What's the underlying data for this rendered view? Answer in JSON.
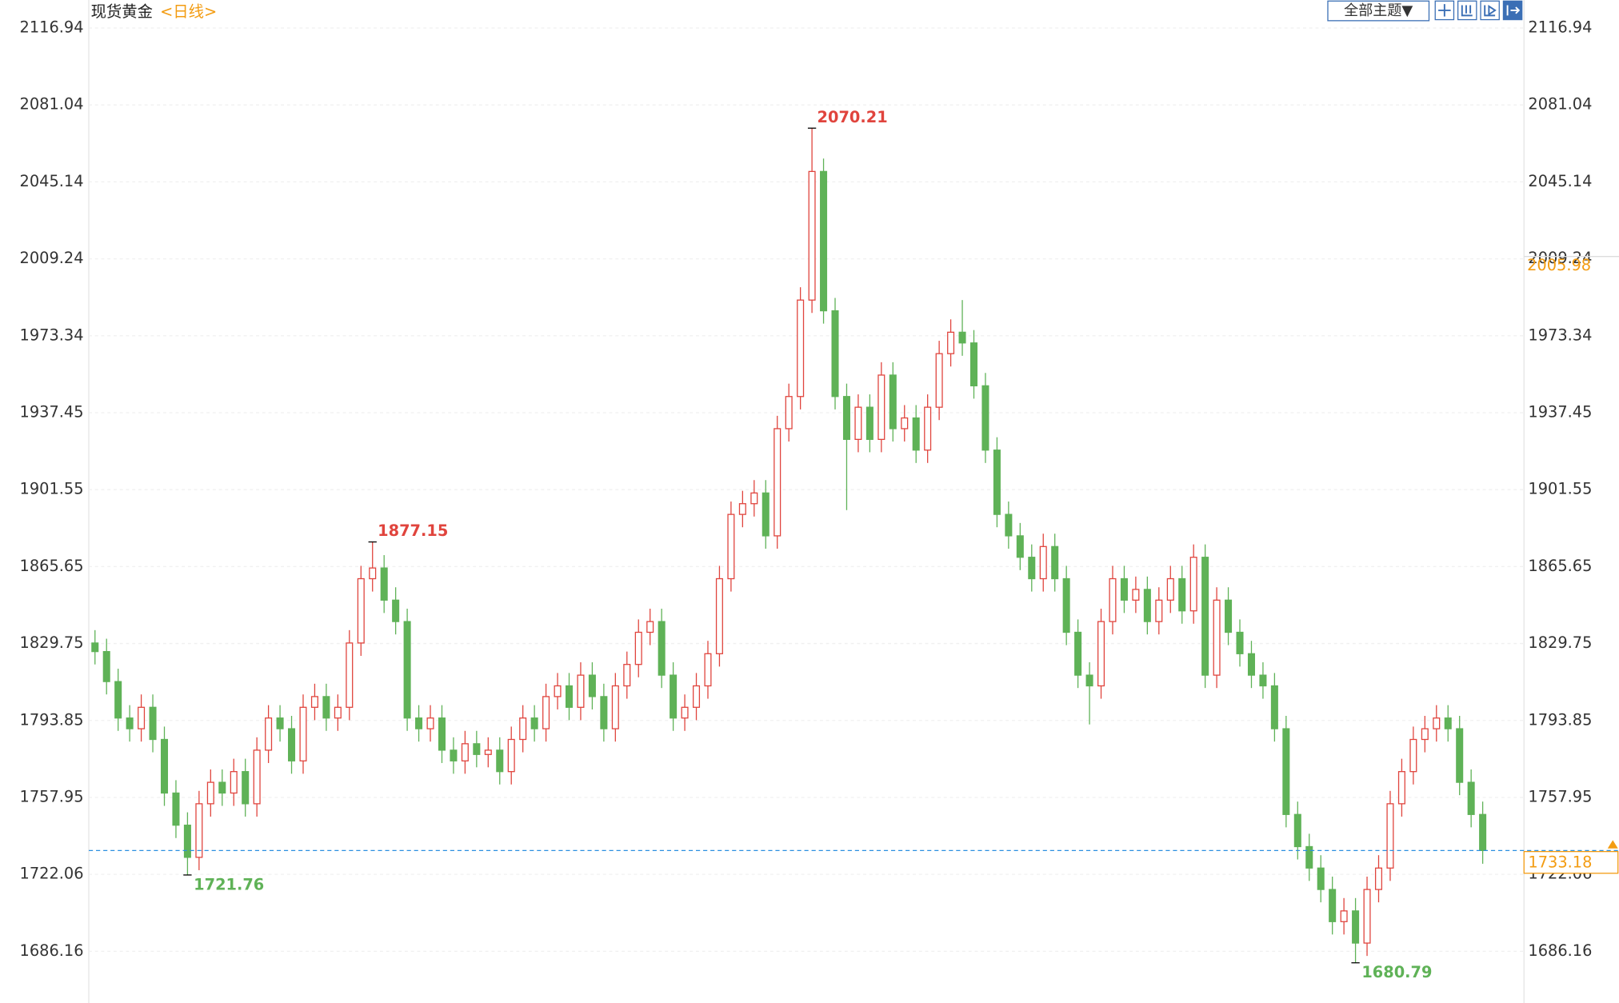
{
  "chart_data": {
    "type": "candlestick",
    "title": "现货黄金",
    "period": "<日线>",
    "toolbar": {
      "theme_button": "全部主题▼"
    },
    "up_color": "#e0443d",
    "down_color": "#5fb257",
    "last_price_color": "#2b8fe0",
    "reference_color": "#f39c12",
    "ylim": [
      1663,
      2130
    ],
    "yticks": [
      1686.16,
      1722.06,
      1757.95,
      1793.85,
      1829.75,
      1865.65,
      1901.55,
      1937.45,
      1973.34,
      2009.24,
      2045.14,
      2081.04,
      2116.94
    ],
    "grid": true,
    "reference_price": 2005.98,
    "open": [
      1830,
      1826,
      1812,
      1795,
      1790,
      1800,
      1785,
      1760,
      1745,
      1730,
      1755,
      1765,
      1760,
      1770,
      1755,
      1780,
      1795,
      1790,
      1775,
      1800,
      1805,
      1795,
      1800,
      1830,
      1860,
      1865,
      1850,
      1840,
      1795,
      1790,
      1795,
      1780,
      1775,
      1783,
      1778,
      1780,
      1770,
      1785,
      1795,
      1790,
      1805,
      1810,
      1800,
      1815,
      1805,
      1790,
      1810,
      1820,
      1835,
      1840,
      1815,
      1795,
      1800,
      1810,
      1825,
      1860,
      1890,
      1895,
      1900,
      1880,
      1930,
      1945,
      1990,
      2050,
      1985,
      1945,
      1925,
      1940,
      1925,
      1955,
      1930,
      1935,
      1920,
      1940,
      1965,
      1975,
      1970,
      1950,
      1920,
      1890,
      1880,
      1870,
      1860,
      1875,
      1860,
      1835,
      1815,
      1810,
      1840,
      1860,
      1850,
      1855,
      1840,
      1850,
      1860,
      1845,
      1870,
      1815,
      1850,
      1835,
      1825,
      1815,
      1810,
      1790,
      1750,
      1735,
      1725,
      1715,
      1700,
      1705,
      1690,
      1715,
      1725,
      1755,
      1770,
      1785,
      1790,
      1795,
      1790,
      1765,
      1750
    ],
    "high": [
      1836,
      1832,
      1818,
      1801,
      1806,
      1806,
      1791,
      1766,
      1751,
      1761,
      1771,
      1771,
      1776,
      1776,
      1786,
      1801,
      1801,
      1796,
      1806,
      1811,
      1811,
      1806,
      1836,
      1866,
      1877.15,
      1871,
      1856,
      1846,
      1801,
      1801,
      1801,
      1786,
      1789,
      1789,
      1786,
      1786,
      1791,
      1801,
      1801,
      1811,
      1816,
      1816,
      1821,
      1821,
      1811,
      1816,
      1826,
      1841,
      1846,
      1846,
      1821,
      1806,
      1816,
      1831,
      1866,
      1896,
      1901,
      1906,
      1906,
      1936,
      1951,
      1996,
      2070.21,
      2056,
      1991,
      1951,
      1946,
      1946,
      1961,
      1961,
      1941,
      1941,
      1946,
      1971,
      1981,
      1990,
      1976,
      1956,
      1926,
      1896,
      1886,
      1876,
      1881,
      1881,
      1866,
      1841,
      1821,
      1846,
      1866,
      1866,
      1861,
      1861,
      1856,
      1866,
      1866,
      1876,
      1876,
      1856,
      1856,
      1841,
      1831,
      1821,
      1816,
      1796,
      1756,
      1741,
      1731,
      1721,
      1711,
      1711,
      1721,
      1731,
      1761,
      1776,
      1791,
      1796,
      1801,
      1801,
      1796,
      1771,
      1756
    ],
    "low": [
      1820,
      1806,
      1789,
      1784,
      1784,
      1779,
      1754,
      1739,
      1721.76,
      1724,
      1749,
      1754,
      1754,
      1749,
      1749,
      1774,
      1784,
      1769,
      1769,
      1794,
      1789,
      1789,
      1794,
      1824,
      1854,
      1844,
      1834,
      1789,
      1784,
      1784,
      1774,
      1769,
      1769,
      1772,
      1772,
      1764,
      1764,
      1779,
      1784,
      1784,
      1799,
      1794,
      1794,
      1799,
      1784,
      1784,
      1804,
      1814,
      1829,
      1809,
      1789,
      1789,
      1794,
      1804,
      1819,
      1854,
      1884,
      1889,
      1874,
      1874,
      1924,
      1939,
      1984,
      1979,
      1939,
      1892,
      1919,
      1919,
      1919,
      1924,
      1924,
      1914,
      1914,
      1934,
      1959,
      1964,
      1944,
      1914,
      1884,
      1874,
      1864,
      1854,
      1854,
      1854,
      1829,
      1809,
      1792,
      1804,
      1834,
      1844,
      1844,
      1834,
      1834,
      1844,
      1839,
      1839,
      1809,
      1809,
      1829,
      1819,
      1809,
      1804,
      1784,
      1744,
      1729,
      1719,
      1709,
      1694,
      1694,
      1680.79,
      1684,
      1709,
      1719,
      1749,
      1764,
      1779,
      1784,
      1784,
      1759,
      1744,
      1727
    ],
    "close": [
      1826,
      1812,
      1795,
      1790,
      1800,
      1785,
      1760,
      1745,
      1730,
      1755,
      1765,
      1760,
      1770,
      1755,
      1780,
      1795,
      1790,
      1775,
      1800,
      1805,
      1795,
      1800,
      1830,
      1860,
      1865,
      1850,
      1840,
      1795,
      1790,
      1795,
      1780,
      1775,
      1783,
      1778,
      1780,
      1770,
      1785,
      1795,
      1790,
      1805,
      1810,
      1800,
      1815,
      1805,
      1790,
      1810,
      1820,
      1835,
      1840,
      1815,
      1795,
      1800,
      1810,
      1825,
      1860,
      1890,
      1895,
      1900,
      1880,
      1930,
      1945,
      1990,
      2050,
      1985,
      1945,
      1925,
      1940,
      1925,
      1955,
      1930,
      1935,
      1920,
      1940,
      1965,
      1975,
      1970,
      1950,
      1920,
      1890,
      1880,
      1870,
      1860,
      1875,
      1860,
      1835,
      1815,
      1810,
      1840,
      1860,
      1850,
      1855,
      1840,
      1850,
      1860,
      1845,
      1870,
      1815,
      1850,
      1835,
      1825,
      1815,
      1810,
      1790,
      1750,
      1735,
      1725,
      1715,
      1700,
      1705,
      1690,
      1715,
      1725,
      1755,
      1770,
      1785,
      1790,
      1795,
      1790,
      1765,
      1750,
      1733.18
    ]
  }
}
